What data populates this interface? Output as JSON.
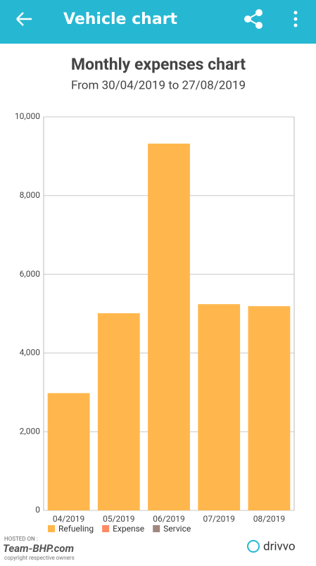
{
  "app_bar": {
    "title": "Vehicle chart"
  },
  "chart_data": {
    "type": "stacked_bar",
    "title": "Monthly expenses chart",
    "subtitle": "From 30/04/2019 to 27/08/2019",
    "categories": [
      "04/2019",
      "05/2019",
      "06/2019",
      "07/2019",
      "08/2019"
    ],
    "series": [
      {
        "name": "Refueling",
        "color": "#ffb74d",
        "values": [
          2980,
          5010,
          9320,
          5240,
          5190
        ]
      },
      {
        "name": "Expense",
        "color": "#ff8a65",
        "values": [
          0,
          0,
          0,
          0,
          0
        ]
      },
      {
        "name": "Service",
        "color": "#a1887f",
        "values": [
          0,
          0,
          0,
          0,
          0
        ]
      }
    ],
    "ylim": [
      0,
      10000
    ],
    "yticks": [
      0,
      {
        "value": 2000,
        "label": "2,000"
      },
      {
        "value": 4000,
        "label": "4,000"
      },
      {
        "value": 6000,
        "label": "6,000"
      },
      {
        "value": 8000,
        "label": "8,000"
      },
      {
        "value": 10000,
        "label": "10,000"
      }
    ],
    "grid": true,
    "legend": "bottom-left"
  },
  "footer": {
    "hosted_on": "HOSTED ON :",
    "site": "Team-BHP.com",
    "copyright": "copyright respective owners",
    "app": "drivvo"
  }
}
